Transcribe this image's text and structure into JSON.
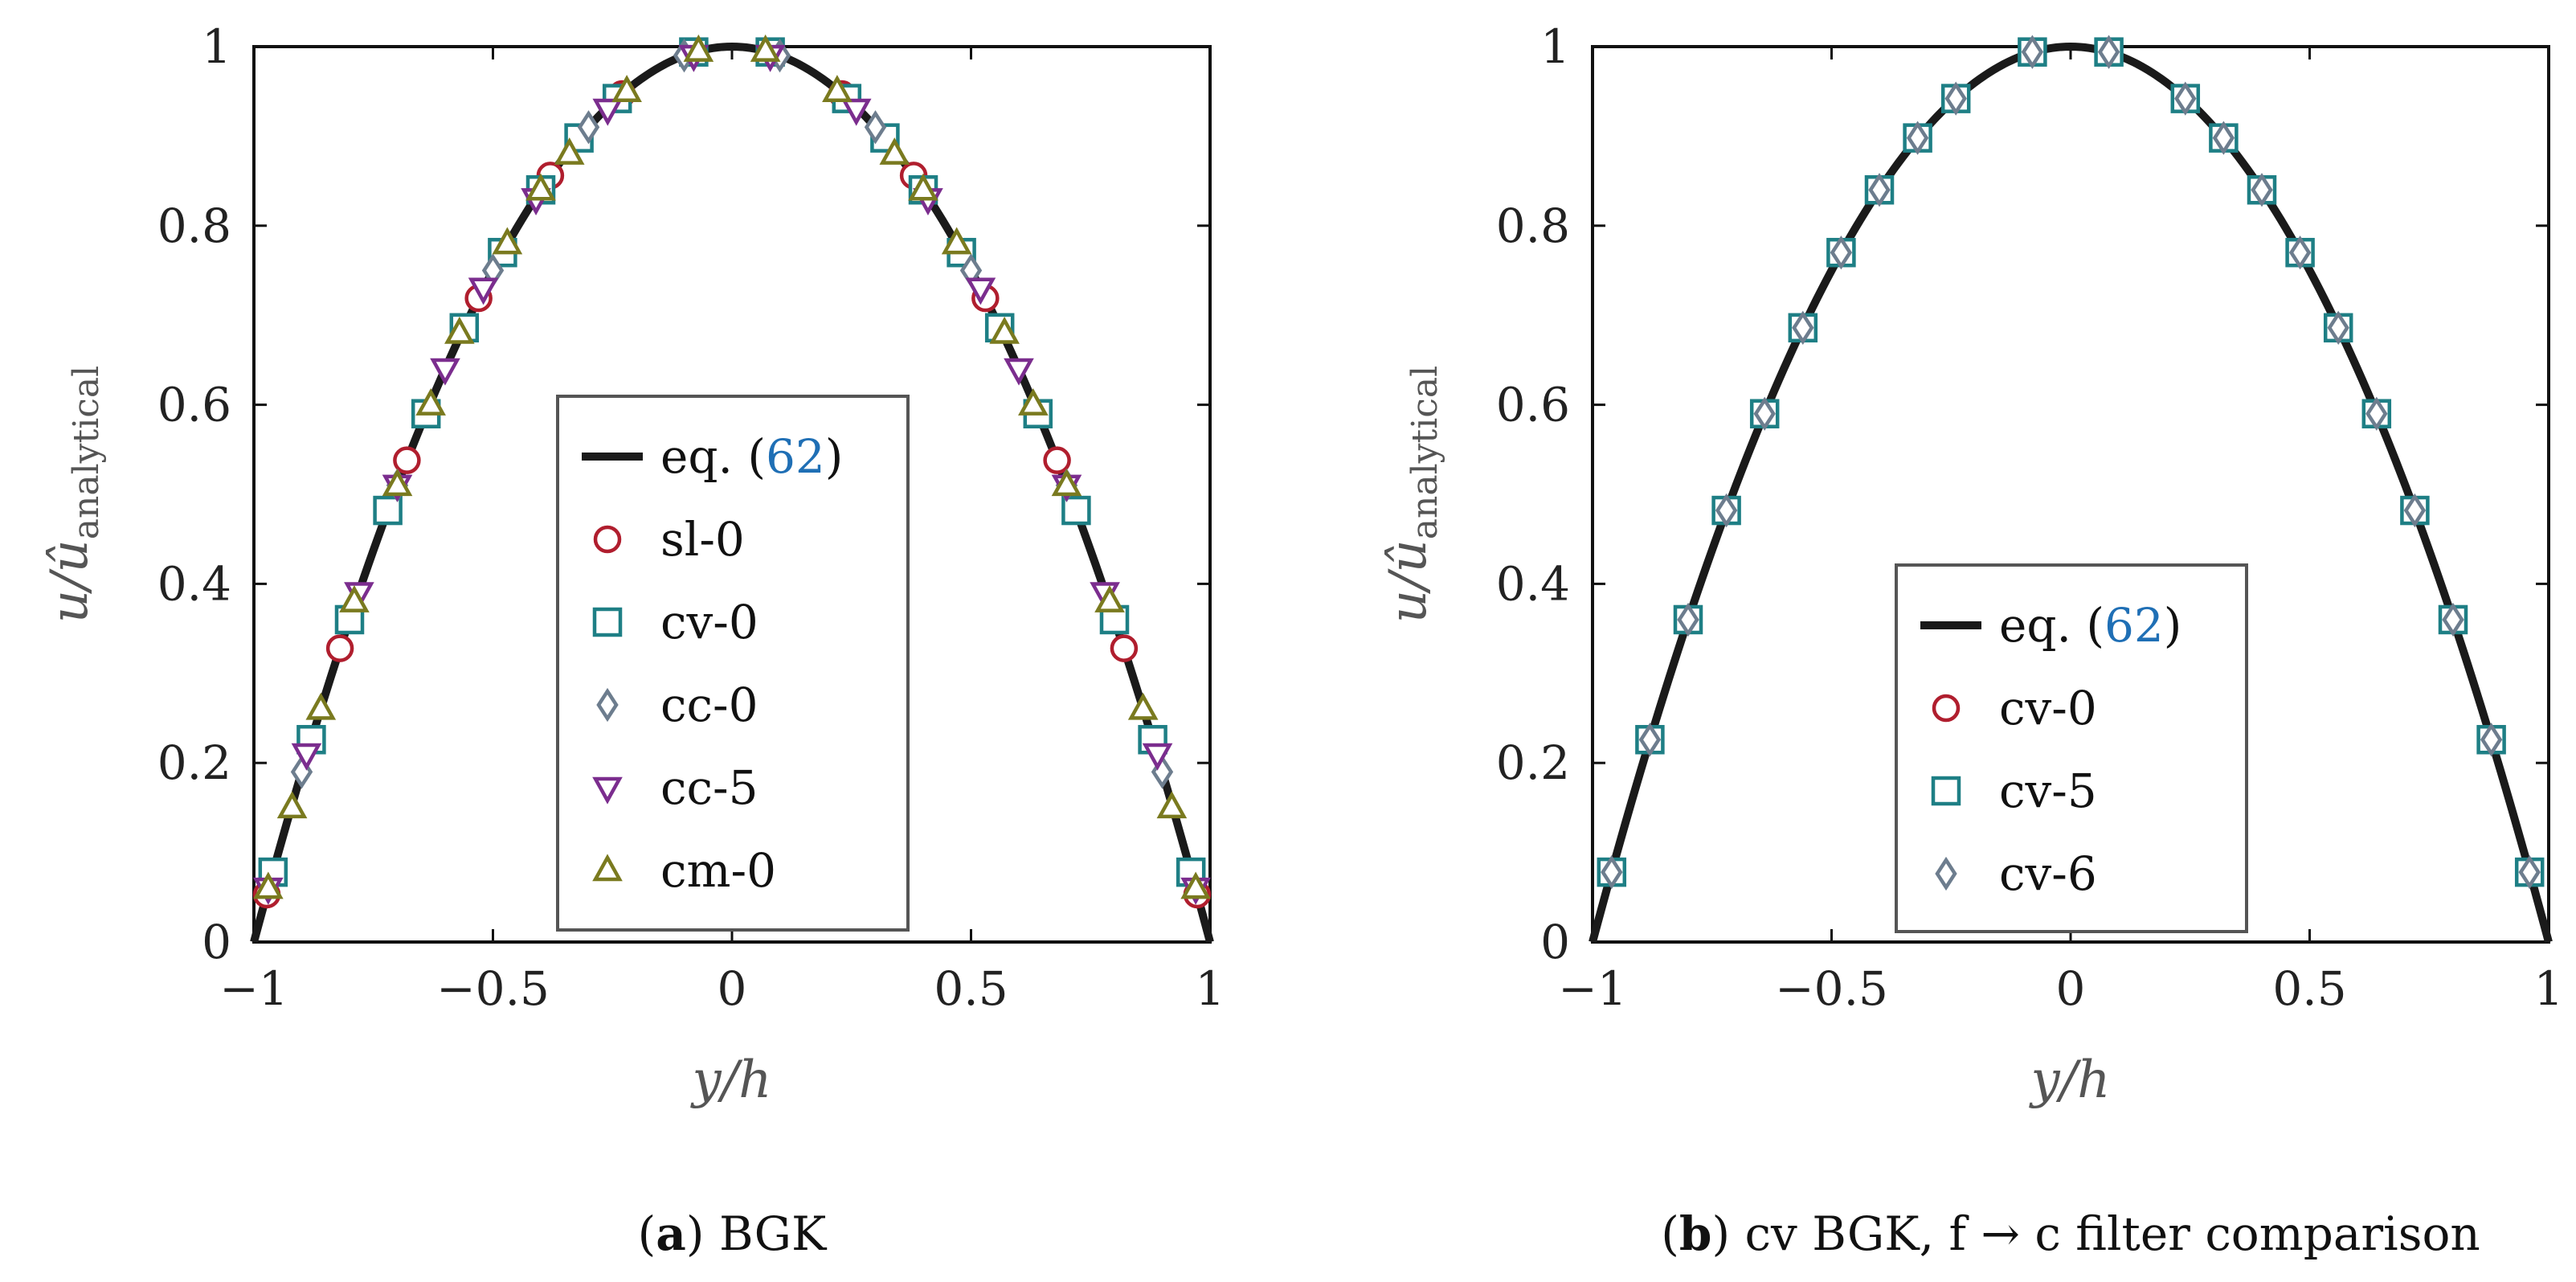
{
  "figure": {
    "subcaptions": [
      {
        "letter": "a",
        "text": "BGK"
      },
      {
        "letter": "b",
        "text": "cv BGK, f → c filter comparison"
      }
    ]
  },
  "chart_data": [
    {
      "type": "line",
      "title": "BGK",
      "xlabel": "y/h",
      "ylabel": "u/û_analytical",
      "xlim": [
        -1,
        1
      ],
      "ylim": [
        0,
        1
      ],
      "xticks": [
        "−1",
        "−0.5",
        "0",
        "0.5",
        "1"
      ],
      "yticks": [
        "0",
        "0.2",
        "0.4",
        "0.6",
        "0.8",
        "1"
      ],
      "legend_position": "center",
      "series": [
        {
          "name": "eq. (62)",
          "ref": "62",
          "kind": "line",
          "color": "#1a1a1a",
          "function": "1 - (y/h)^2"
        },
        {
          "name": "sl-0",
          "marker": "circle",
          "color": "#b01e2e",
          "x": [
            -0.973,
            -0.82,
            -0.68,
            -0.53,
            -0.38,
            -0.23,
            -0.08,
            0.08,
            0.23,
            0.38,
            0.53,
            0.68,
            0.82,
            0.973
          ],
          "y": [
            0.053,
            0.328,
            0.538,
            0.719,
            0.856,
            0.947,
            0.994,
            0.994,
            0.947,
            0.856,
            0.719,
            0.538,
            0.328,
            0.053
          ]
        },
        {
          "name": "cv-0",
          "marker": "square",
          "color": "#1e7f85",
          "x": [
            -0.96,
            -0.88,
            -0.8,
            -0.72,
            -0.64,
            -0.56,
            -0.48,
            -0.4,
            -0.32,
            -0.24,
            -0.08,
            0.08,
            0.24,
            0.32,
            0.4,
            0.48,
            0.56,
            0.64,
            0.72,
            0.8,
            0.88,
            0.96
          ],
          "y": [
            0.078,
            0.226,
            0.36,
            0.482,
            0.59,
            0.686,
            0.77,
            0.84,
            0.898,
            0.942,
            0.994,
            0.994,
            0.942,
            0.898,
            0.84,
            0.77,
            0.686,
            0.59,
            0.482,
            0.36,
            0.226,
            0.078
          ]
        },
        {
          "name": "cc-0",
          "marker": "diamond",
          "color": "#6d7d8e",
          "x": [
            -0.9,
            -0.7,
            -0.5,
            -0.3,
            -0.1,
            0.1,
            0.3,
            0.5,
            0.7,
            0.9
          ],
          "y": [
            0.19,
            0.51,
            0.75,
            0.91,
            0.99,
            0.99,
            0.91,
            0.75,
            0.51,
            0.19
          ]
        },
        {
          "name": "cc-5",
          "marker": "triangle-down",
          "color": "#7b2d8e",
          "x": [
            -0.97,
            -0.89,
            -0.78,
            -0.7,
            -0.6,
            -0.52,
            -0.41,
            -0.26,
            -0.08,
            0.08,
            0.26,
            0.41,
            0.52,
            0.6,
            0.7,
            0.78,
            0.89,
            0.97
          ],
          "y": [
            0.06,
            0.21,
            0.39,
            0.51,
            0.64,
            0.73,
            0.83,
            0.93,
            0.99,
            0.99,
            0.93,
            0.83,
            0.73,
            0.64,
            0.51,
            0.39,
            0.21,
            0.06
          ]
        },
        {
          "name": "cm-0",
          "marker": "triangle-up",
          "color": "#7a7a1f",
          "x": [
            -0.97,
            -0.92,
            -0.86,
            -0.79,
            -0.7,
            -0.63,
            -0.57,
            -0.47,
            -0.4,
            -0.34,
            -0.22,
            -0.07,
            0.07,
            0.22,
            0.34,
            0.4,
            0.47,
            0.57,
            0.63,
            0.7,
            0.79,
            0.86,
            0.92,
            0.97
          ],
          "y": [
            0.06,
            0.15,
            0.26,
            0.38,
            0.51,
            0.6,
            0.68,
            0.78,
            0.84,
            0.88,
            0.95,
            0.995,
            0.995,
            0.95,
            0.88,
            0.84,
            0.78,
            0.68,
            0.6,
            0.51,
            0.38,
            0.26,
            0.15,
            0.06
          ]
        }
      ]
    },
    {
      "type": "line",
      "title": "cv BGK, f → c filter comparison",
      "xlabel": "y/h",
      "ylabel": "u/û_analytical",
      "xlim": [
        -1,
        1
      ],
      "ylim": [
        0,
        1
      ],
      "xticks": [
        "−1",
        "−0.5",
        "0",
        "0.5",
        "1"
      ],
      "yticks": [
        "0",
        "0.2",
        "0.4",
        "0.6",
        "0.8",
        "1"
      ],
      "legend_position": "bottom-center",
      "series": [
        {
          "name": "eq. (62)",
          "ref": "62",
          "kind": "line",
          "color": "#1a1a1a",
          "function": "1 - (y/h)^2"
        },
        {
          "name": "cv-0",
          "marker": "circle",
          "color": "#b01e2e",
          "x": [],
          "y": []
        },
        {
          "name": "cv-5",
          "marker": "square",
          "color": "#1e7f85",
          "x": [
            -0.96,
            -0.88,
            -0.8,
            -0.72,
            -0.64,
            -0.56,
            -0.48,
            -0.4,
            -0.32,
            -0.24,
            -0.08,
            0.08,
            0.24,
            0.32,
            0.4,
            0.48,
            0.56,
            0.64,
            0.72,
            0.8,
            0.88,
            0.96
          ],
          "y": [
            0.078,
            0.226,
            0.36,
            0.482,
            0.59,
            0.686,
            0.77,
            0.84,
            0.898,
            0.942,
            0.994,
            0.994,
            0.942,
            0.898,
            0.84,
            0.77,
            0.686,
            0.59,
            0.482,
            0.36,
            0.226,
            0.078
          ]
        },
        {
          "name": "cv-6",
          "marker": "diamond",
          "color": "#6d7d8e",
          "x": [
            -0.96,
            -0.88,
            -0.8,
            -0.72,
            -0.64,
            -0.56,
            -0.48,
            -0.4,
            -0.32,
            -0.24,
            -0.08,
            0.08,
            0.24,
            0.32,
            0.4,
            0.48,
            0.56,
            0.64,
            0.72,
            0.8,
            0.88,
            0.96
          ],
          "y": [
            0.078,
            0.226,
            0.36,
            0.482,
            0.59,
            0.686,
            0.77,
            0.84,
            0.898,
            0.942,
            0.994,
            0.994,
            0.942,
            0.898,
            0.84,
            0.77,
            0.686,
            0.59,
            0.482,
            0.36,
            0.226,
            0.078
          ]
        }
      ]
    }
  ]
}
